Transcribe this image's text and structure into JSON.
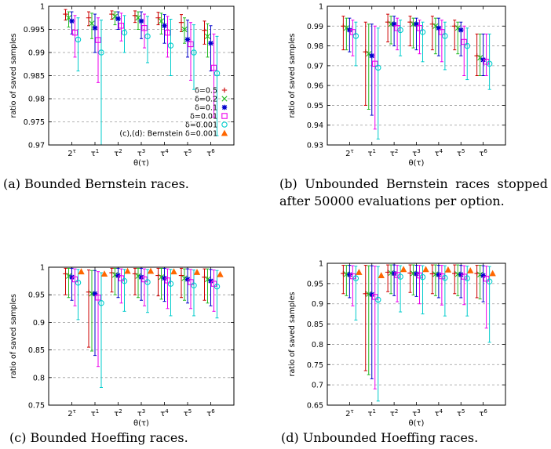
{
  "captions": {
    "a": "(a) Bounded Bernstein races.",
    "b": "(b) Unbounded Bernstein races stopped after 50000 evaluations per option.",
    "c": "(c) Bounded Hoeffing races.",
    "d": "(d) Unbounded Hoeffing races."
  },
  "colors": {
    "δ=0.5": "#cc0000",
    "δ=0.2": "#22bb22",
    "δ=0.1": "#0000cc",
    "δ=0.01": "#ee00ee",
    "δ=0.001": "#00cccc",
    "(c),(d): Bernstein δ=0.001": "#ff6600"
  },
  "markers": {
    "δ=0.5": "plus",
    "δ=0.2": "cross",
    "δ=0.1": "star",
    "δ=0.01": "square",
    "δ=0.001": "circle",
    "(c),(d): Bernstein δ=0.001": "triangle"
  },
  "chart_data": [
    {
      "id": "a",
      "type": "scatter",
      "xlabel": "θ(τ)",
      "ylabel": "ratio of saved samples",
      "categories": [
        "2^τ",
        "τ^1",
        "τ^2",
        "τ^3",
        "τ^4",
        "τ^5",
        "τ^6"
      ],
      "ylim": [
        0.97,
        1
      ],
      "yticks": [
        0.97,
        0.975,
        0.98,
        0.985,
        0.99,
        0.995,
        1
      ],
      "grid": true,
      "legend": "bottom-right",
      "series": [
        {
          "name": "δ=0.5",
          "values": [
            0.9983,
            0.9975,
            0.9983,
            0.998,
            0.9975,
            0.9965,
            0.9948
          ],
          "low": [
            0.997,
            0.9958,
            0.9972,
            0.9965,
            0.996,
            0.9945,
            0.9918
          ],
          "high": [
            0.9993,
            0.9988,
            0.999,
            0.999,
            0.9987,
            0.9982,
            0.9968
          ]
        },
        {
          "name": "δ=0.2",
          "values": [
            0.9975,
            0.9963,
            0.9978,
            0.9975,
            0.9968,
            0.995,
            0.9935
          ],
          "low": [
            0.9955,
            0.993,
            0.996,
            0.995,
            0.994,
            0.992,
            0.989
          ],
          "high": [
            0.9988,
            0.9985,
            0.9988,
            0.9988,
            0.9985,
            0.9975,
            0.9962
          ]
        },
        {
          "name": "δ=0.1",
          "values": [
            0.9968,
            0.9953,
            0.9973,
            0.9968,
            0.9958,
            0.9928,
            0.992
          ],
          "low": [
            0.994,
            0.99,
            0.995,
            0.993,
            0.992,
            0.989,
            0.986
          ],
          "high": [
            0.9988,
            0.9983,
            0.9988,
            0.9988,
            0.9982,
            0.997,
            0.9958
          ]
        },
        {
          "name": "δ=0.01",
          "values": [
            0.9943,
            0.9927,
            0.9958,
            0.9953,
            0.9943,
            0.9918,
            0.9867
          ],
          "low": [
            0.989,
            0.9835,
            0.9925,
            0.991,
            0.989,
            0.984,
            0.976
          ],
          "high": [
            0.998,
            0.9975,
            0.9985,
            0.9983,
            0.9978,
            0.9965,
            0.994
          ]
        },
        {
          "name": "δ=0.001",
          "values": [
            0.9928,
            0.99,
            0.9943,
            0.9935,
            0.9915,
            0.99,
            0.9855
          ],
          "low": [
            0.986,
            0.97,
            0.99,
            0.9878,
            0.985,
            0.982,
            0.972
          ],
          "high": [
            0.9975,
            0.997,
            0.998,
            0.9978,
            0.9972,
            0.996,
            0.9935
          ]
        }
      ],
      "legend_entries": [
        "δ=0.5",
        "δ=0.2",
        "δ=0.1",
        "δ=0.01",
        "δ=0.001",
        "(c),(d): Bernstein δ=0.001"
      ]
    },
    {
      "id": "b",
      "type": "scatter",
      "xlabel": "θ(τ)",
      "ylabel": "ratio of saved samples",
      "categories": [
        "2^τ",
        "τ^1",
        "τ^2",
        "τ^3",
        "τ^4",
        "τ^5",
        "τ^6"
      ],
      "ylim": [
        0.93,
        1
      ],
      "yticks": [
        0.93,
        0.94,
        0.95,
        0.96,
        0.97,
        0.98,
        0.99,
        1
      ],
      "grid": true,
      "series": [
        {
          "name": "δ=0.5",
          "values": [
            0.99,
            0.977,
            0.992,
            0.992,
            0.991,
            0.99,
            0.975
          ],
          "low": [
            0.978,
            0.95,
            0.982,
            0.98,
            0.978,
            0.978,
            0.965
          ],
          "high": [
            0.995,
            0.992,
            0.996,
            0.995,
            0.995,
            0.993,
            0.986
          ]
        },
        {
          "name": "δ=0.2",
          "values": [
            0.989,
            0.976,
            0.991,
            0.991,
            0.99,
            0.989,
            0.974
          ],
          "low": [
            0.978,
            0.948,
            0.981,
            0.979,
            0.976,
            0.976,
            0.965
          ],
          "high": [
            0.994,
            0.991,
            0.995,
            0.994,
            0.994,
            0.992,
            0.986
          ]
        },
        {
          "name": "δ=0.1",
          "values": [
            0.988,
            0.975,
            0.991,
            0.991,
            0.989,
            0.988,
            0.973
          ],
          "low": [
            0.977,
            0.945,
            0.98,
            0.978,
            0.975,
            0.975,
            0.965
          ],
          "high": [
            0.994,
            0.991,
            0.995,
            0.994,
            0.994,
            0.992,
            0.986
          ]
        },
        {
          "name": "δ=0.01",
          "values": [
            0.987,
            0.971,
            0.989,
            0.989,
            0.987,
            0.982,
            0.972
          ],
          "low": [
            0.975,
            0.938,
            0.978,
            0.976,
            0.972,
            0.965,
            0.965
          ],
          "high": [
            0.993,
            0.99,
            0.994,
            0.993,
            0.993,
            0.99,
            0.986
          ]
        },
        {
          "name": "δ=0.001",
          "values": [
            0.985,
            0.969,
            0.988,
            0.987,
            0.985,
            0.98,
            0.971
          ],
          "low": [
            0.97,
            0.933,
            0.975,
            0.972,
            0.968,
            0.963,
            0.958
          ],
          "high": [
            0.992,
            0.989,
            0.993,
            0.992,
            0.992,
            0.989,
            0.986
          ]
        }
      ]
    },
    {
      "id": "c",
      "type": "scatter",
      "xlabel": "θ(τ)",
      "ylabel": "ratio of saved samples",
      "categories": [
        "2^τ",
        "τ^1",
        "τ^2",
        "τ^3",
        "τ^4",
        "τ^5",
        "τ^6"
      ],
      "ylim": [
        0.75,
        1
      ],
      "yticks": [
        0.75,
        0.8,
        0.85,
        0.9,
        0.95,
        1
      ],
      "grid": true,
      "series": [
        {
          "name": "δ=0.5",
          "values": [
            0.988,
            0.955,
            0.99,
            0.988,
            0.985,
            0.985,
            0.982
          ],
          "low": [
            0.95,
            0.855,
            0.955,
            0.95,
            0.948,
            0.945,
            0.94
          ],
          "high": [
            0.998,
            0.995,
            0.998,
            0.998,
            0.998,
            0.998,
            0.997
          ]
        },
        {
          "name": "δ=0.2",
          "values": [
            0.984,
            0.952,
            0.986,
            0.984,
            0.982,
            0.98,
            0.978
          ],
          "low": [
            0.945,
            0.848,
            0.95,
            0.945,
            0.942,
            0.94,
            0.935
          ],
          "high": [
            0.998,
            0.994,
            0.998,
            0.998,
            0.998,
            0.997,
            0.997
          ]
        },
        {
          "name": "δ=0.1",
          "values": [
            0.982,
            0.952,
            0.985,
            0.982,
            0.98,
            0.978,
            0.975
          ],
          "low": [
            0.94,
            0.84,
            0.945,
            0.94,
            0.938,
            0.935,
            0.93
          ],
          "high": [
            0.998,
            0.994,
            0.998,
            0.998,
            0.998,
            0.997,
            0.996
          ]
        },
        {
          "name": "δ=0.01",
          "values": [
            0.978,
            0.945,
            0.98,
            0.978,
            0.976,
            0.973,
            0.97
          ],
          "low": [
            0.93,
            0.82,
            0.935,
            0.93,
            0.925,
            0.925,
            0.92
          ],
          "high": [
            0.997,
            0.992,
            0.997,
            0.997,
            0.997,
            0.996,
            0.995
          ]
        },
        {
          "name": "δ=0.001",
          "values": [
            0.972,
            0.935,
            0.975,
            0.973,
            0.97,
            0.967,
            0.965
          ],
          "low": [
            0.905,
            0.782,
            0.92,
            0.918,
            0.912,
            0.912,
            0.908
          ],
          "high": [
            0.996,
            0.99,
            0.996,
            0.996,
            0.996,
            0.995,
            0.994
          ]
        },
        {
          "name": "(c),(d): Bernstein δ=0.001",
          "values": [
            0.992,
            0.988,
            0.993,
            0.993,
            0.992,
            0.991,
            0.987
          ],
          "low": [
            0.992,
            0.988,
            0.993,
            0.993,
            0.992,
            0.991,
            0.987
          ],
          "high": [
            0.992,
            0.988,
            0.993,
            0.993,
            0.992,
            0.991,
            0.987
          ]
        }
      ]
    },
    {
      "id": "d",
      "type": "scatter",
      "xlabel": "θ(τ)",
      "ylabel": "ratio of saved samples",
      "categories": [
        "2^τ",
        "τ^1",
        "τ^2",
        "τ^3",
        "τ^4",
        "τ^5",
        "τ^6"
      ],
      "ylim": [
        0.65,
        1
      ],
      "yticks": [
        0.65,
        0.7,
        0.75,
        0.8,
        0.85,
        0.9,
        0.95,
        1
      ],
      "grid": true,
      "series": [
        {
          "name": "δ=0.5",
          "values": [
            0.975,
            0.925,
            0.978,
            0.976,
            0.974,
            0.975,
            0.975
          ],
          "low": [
            0.925,
            0.735,
            0.93,
            0.928,
            0.925,
            0.925,
            0.915
          ],
          "high": [
            0.995,
            0.995,
            0.996,
            0.996,
            0.996,
            0.996,
            0.995
          ]
        },
        {
          "name": "δ=0.2",
          "values": [
            0.973,
            0.924,
            0.976,
            0.975,
            0.973,
            0.973,
            0.972
          ],
          "low": [
            0.92,
            0.725,
            0.925,
            0.922,
            0.92,
            0.92,
            0.912
          ],
          "high": [
            0.995,
            0.994,
            0.996,
            0.996,
            0.996,
            0.996,
            0.995
          ]
        },
        {
          "name": "δ=0.1",
          "values": [
            0.972,
            0.923,
            0.975,
            0.974,
            0.972,
            0.972,
            0.97
          ],
          "low": [
            0.915,
            0.715,
            0.92,
            0.918,
            0.915,
            0.915,
            0.905
          ],
          "high": [
            0.995,
            0.994,
            0.996,
            0.995,
            0.995,
            0.995,
            0.994
          ]
        },
        {
          "name": "δ=0.01",
          "values": [
            0.968,
            0.917,
            0.971,
            0.97,
            0.968,
            0.967,
            0.962
          ],
          "low": [
            0.895,
            0.69,
            0.905,
            0.9,
            0.897,
            0.898,
            0.84
          ],
          "high": [
            0.994,
            0.993,
            0.995,
            0.995,
            0.995,
            0.994,
            0.993
          ]
        },
        {
          "name": "δ=0.001",
          "values": [
            0.963,
            0.91,
            0.967,
            0.966,
            0.964,
            0.963,
            0.955
          ],
          "low": [
            0.86,
            0.66,
            0.88,
            0.875,
            0.87,
            0.87,
            0.805
          ],
          "high": [
            0.993,
            0.992,
            0.994,
            0.994,
            0.994,
            0.993,
            0.992
          ]
        },
        {
          "name": "(c),(d): Bernstein δ=0.001",
          "values": [
            0.978,
            0.97,
            0.985,
            0.985,
            0.984,
            0.982,
            0.975
          ],
          "low": [
            0.978,
            0.97,
            0.985,
            0.985,
            0.984,
            0.982,
            0.975
          ],
          "high": [
            0.978,
            0.97,
            0.985,
            0.985,
            0.984,
            0.982,
            0.975
          ]
        }
      ]
    }
  ]
}
